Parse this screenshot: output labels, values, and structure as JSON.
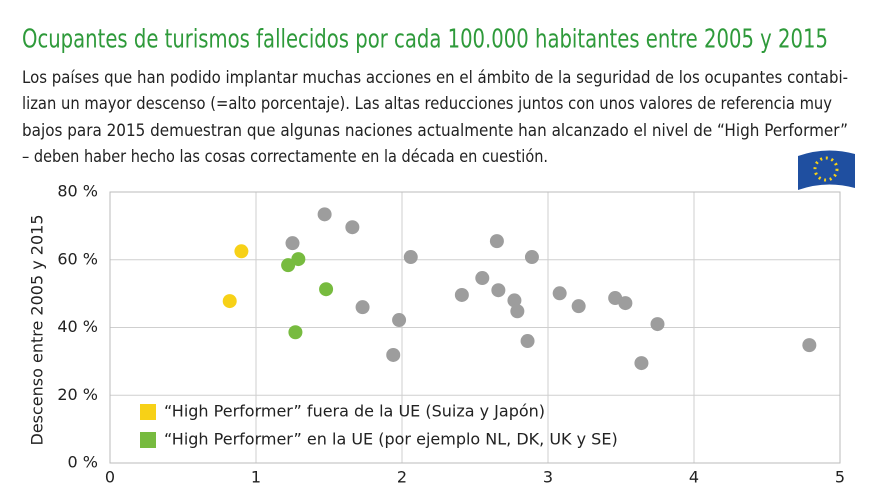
{
  "chart_data": {
    "type": "scatter",
    "title": "Ocupantes de turismos fallecidos por cada 100.000 habitantes entre 2005 y 2015",
    "body_lines": [
      "Los países que han podido implantar muchas acciones en el ámbito de la seguridad de los ocupantes contabi-",
      "lizan un mayor descenso (=alto porcentaje). Las altas reducciones juntos con unos valores de referencia muy",
      "bajos para 2015 demuestran que algunas naciones actualmente han alcanzado el nivel de “High Performer”",
      "– deben haber hecho las cosas correctamente en la década en cuestión."
    ],
    "y_label": "Descenso entre 2005 y 2015",
    "xlim": [
      0,
      5
    ],
    "xticks": [
      0,
      1,
      2,
      3,
      4,
      5
    ],
    "ylim": [
      0,
      80
    ],
    "yticks": [
      {
        "value": 0,
        "label": "0 %"
      },
      {
        "value": 20,
        "label": "20 %"
      },
      {
        "value": 40,
        "label": "40 %"
      },
      {
        "value": 60,
        "label": "60 %"
      },
      {
        "value": 80,
        "label": "80 %"
      }
    ],
    "grid": true,
    "legend": "lower left",
    "series": [
      {
        "color": "#9d9d9d",
        "x": [
          1.25,
          1.47,
          1.66,
          1.73,
          1.98,
          1.94,
          2.06,
          2.41,
          2.55,
          2.65,
          2.66,
          2.77,
          2.79,
          2.86,
          2.89,
          3.08,
          3.21,
          3.46,
          3.53,
          3.64,
          3.75,
          4.79
        ],
        "values": [
          64.9,
          73.4,
          69.6,
          46,
          42.2,
          31.9,
          60.8,
          49.6,
          54.6,
          65.5,
          51,
          48,
          44.8,
          36,
          60.8,
          50.1,
          46.3,
          48.7,
          47.2,
          29.5,
          41,
          34.8
        ]
      },
      {
        "name": "“High Performer” fuera de la UE (Suiza y Japón)",
        "color": "#f7d117",
        "x": [
          0.82,
          0.9
        ],
        "values": [
          47.8,
          62.5
        ]
      },
      {
        "name": "“High Performer” en la UE (por ejemplo NL, DK, UK y SE)",
        "color": "#77bb3f",
        "x": [
          1.22,
          1.29,
          1.48,
          1.27
        ],
        "values": [
          58.4,
          60.2,
          51.3,
          38.6
        ]
      }
    ]
  }
}
